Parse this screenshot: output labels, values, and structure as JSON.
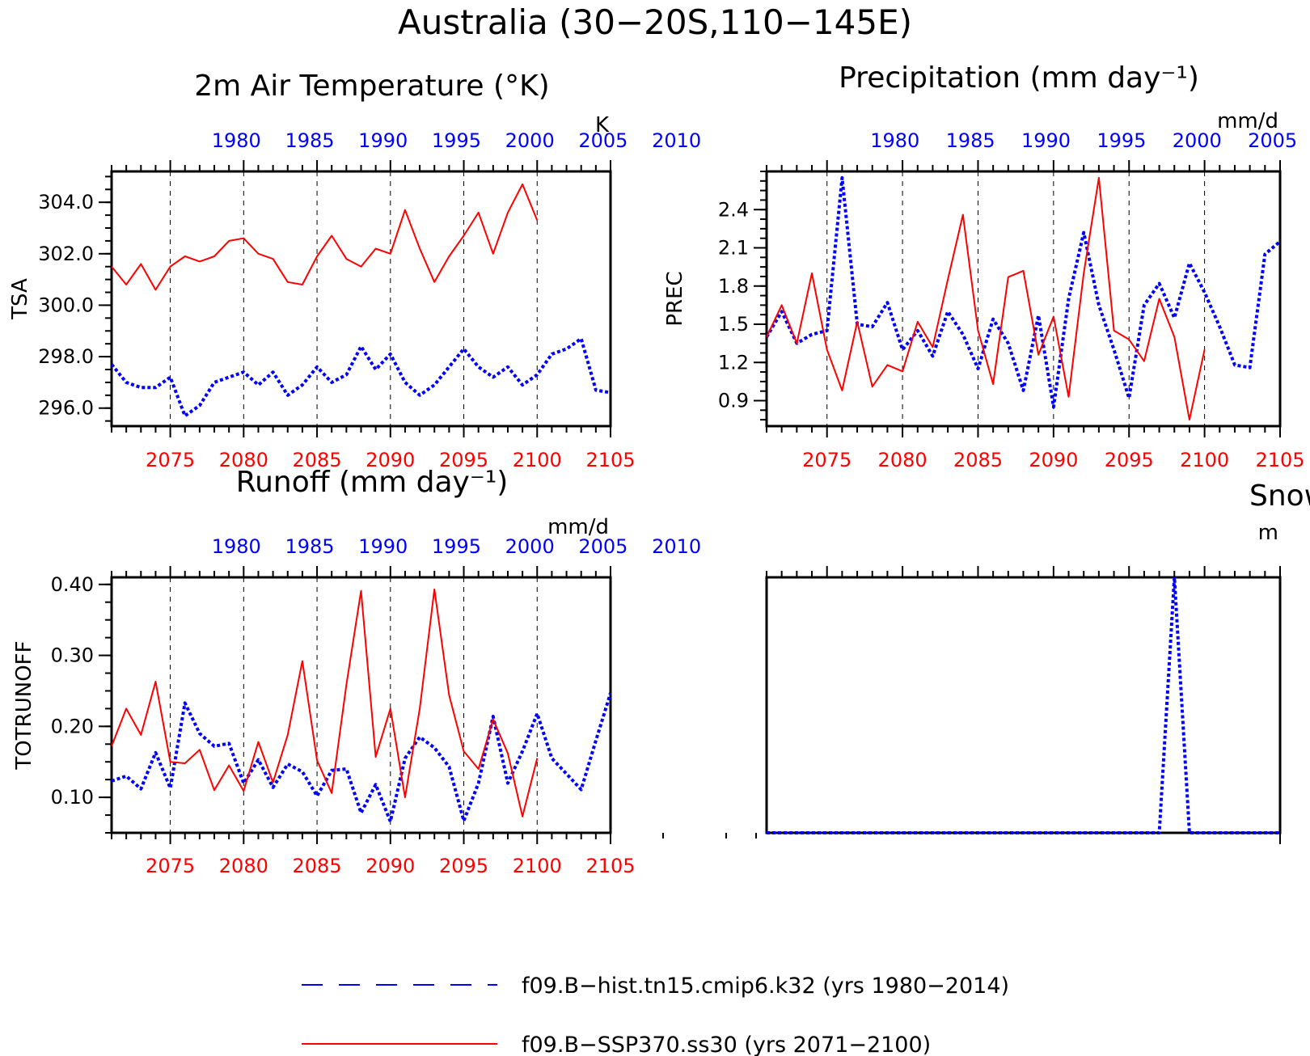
{
  "title": "Australia (30−20S,110−145E)",
  "colors": {
    "hist": "#0000ff",
    "ssp": "#ff0000",
    "axis": "#000000"
  },
  "legend": [
    {
      "label": "f09.B−hist.tn15.cmip6.k32 (yrs 1980−2014)",
      "color": "#0000ff",
      "style": "dashed"
    },
    {
      "label": "f09.B−SSP370.ss30 (yrs 2071−2100)",
      "color": "#ff0000",
      "style": "solid"
    }
  ],
  "chart_data": [
    {
      "id": "tsa",
      "type": "line",
      "title": "2m Air Temperature (°K)",
      "ylabel": "TSA",
      "units": "K",
      "ylim": [
        295.3,
        305.2
      ],
      "yticks": [
        "296.0",
        "298.0",
        "300.0",
        "302.0",
        "304.0"
      ],
      "ytick_values": [
        296,
        298,
        300,
        302,
        304
      ],
      "top_ticks": [
        "1980",
        "1985",
        "1990",
        "1995",
        "2000",
        "2005",
        "2010"
      ],
      "bottom_ticks": [
        "2075",
        "2080",
        "2085",
        "2090",
        "2095",
        "2100",
        "2105"
      ],
      "series": [
        {
          "name": "f09.B−hist.tn15.cmip6.k32",
          "color": "#0000ff",
          "style": "dotted",
          "values": [
            297.7,
            297.0,
            296.8,
            296.8,
            297.2,
            295.7,
            296.1,
            297.0,
            297.2,
            297.4,
            296.9,
            297.4,
            296.5,
            296.9,
            297.6,
            297.0,
            297.3,
            298.4,
            297.5,
            298.1,
            297.0,
            296.5,
            296.9,
            297.6,
            298.3,
            297.6,
            297.2,
            297.6,
            296.9,
            297.3,
            298.1,
            298.3,
            298.7,
            296.7,
            296.6
          ]
        },
        {
          "name": "f09.B−SSP370.ss30",
          "color": "#ff0000",
          "style": "solid",
          "values": [
            301.5,
            300.8,
            301.6,
            300.6,
            301.5,
            301.9,
            301.7,
            301.9,
            302.5,
            302.6,
            302.0,
            301.8,
            300.9,
            300.8,
            301.9,
            302.7,
            301.8,
            301.5,
            302.2,
            302.0,
            303.7,
            302.2,
            300.9,
            301.9,
            302.7,
            303.6,
            302.0,
            303.6,
            304.7,
            303.3
          ]
        }
      ]
    },
    {
      "id": "prec",
      "type": "line",
      "title": "Precipitation (mm day⁻¹)",
      "ylabel": "PREC",
      "units": "mm/d",
      "ylim": [
        0.7,
        2.7
      ],
      "yticks": [
        "0.9",
        "1.2",
        "1.5",
        "1.8",
        "2.1",
        "2.4"
      ],
      "ytick_values": [
        0.9,
        1.2,
        1.5,
        1.8,
        2.1,
        2.4
      ],
      "top_ticks": [
        "1980",
        "1985",
        "1990",
        "1995",
        "2000",
        "2005",
        "2010"
      ],
      "bottom_ticks": [
        "2075",
        "2080",
        "2085",
        "2090",
        "2095",
        "2100",
        "2105"
      ],
      "series": [
        {
          "name": "f09.B−hist.tn15.cmip6.k32",
          "color": "#0000ff",
          "style": "dotted",
          "values": [
            1.4,
            1.6,
            1.35,
            1.42,
            1.45,
            2.65,
            1.5,
            1.48,
            1.67,
            1.3,
            1.45,
            1.25,
            1.6,
            1.42,
            1.15,
            1.54,
            1.35,
            0.98,
            1.57,
            0.85,
            1.7,
            2.22,
            1.65,
            1.3,
            0.92,
            1.65,
            1.82,
            1.55,
            1.98,
            1.75,
            1.48,
            1.18,
            1.16,
            2.05,
            2.15
          ]
        },
        {
          "name": "f09.B−SSP370.ss30",
          "color": "#ff0000",
          "style": "solid",
          "values": [
            1.4,
            1.65,
            1.35,
            1.9,
            1.3,
            0.98,
            1.52,
            1.01,
            1.18,
            1.13,
            1.52,
            1.32,
            1.85,
            2.36,
            1.45,
            1.03,
            1.87,
            1.92,
            1.26,
            1.56,
            0.93,
            1.9,
            2.65,
            1.45,
            1.38,
            1.21,
            1.7,
            1.4,
            0.75,
            1.3
          ]
        }
      ]
    },
    {
      "id": "runoff",
      "type": "line",
      "title": "Runoff (mm day⁻¹)",
      "ylabel": "TOTRUNOFF",
      "units": "mm/d",
      "ylim": [
        0.05,
        0.41
      ],
      "yticks": [
        "0.10",
        "0.20",
        "0.30",
        "0.40"
      ],
      "ytick_values": [
        0.1,
        0.2,
        0.3,
        0.4
      ],
      "top_ticks": [
        "1980",
        "1985",
        "1990",
        "1995",
        "2000",
        "2005",
        "2010"
      ],
      "bottom_ticks": [
        "2075",
        "2080",
        "2085",
        "2090",
        "2095",
        "2100",
        "2105"
      ],
      "series": [
        {
          "name": "f09.B−hist.tn15.cmip6.k32",
          "color": "#0000ff",
          "style": "dotted",
          "values": [
            0.123,
            0.13,
            0.112,
            0.163,
            0.113,
            0.233,
            0.19,
            0.172,
            0.176,
            0.12,
            0.153,
            0.114,
            0.147,
            0.136,
            0.102,
            0.138,
            0.14,
            0.078,
            0.118,
            0.066,
            0.155,
            0.185,
            0.17,
            0.143,
            0.067,
            0.12,
            0.214,
            0.12,
            0.165,
            0.218,
            0.155,
            0.133,
            0.111,
            0.18,
            0.247
          ]
        },
        {
          "name": "f09.B−SSP370.ss30",
          "color": "#ff0000",
          "style": "solid",
          "values": [
            0.172,
            0.225,
            0.188,
            0.263,
            0.15,
            0.148,
            0.167,
            0.11,
            0.145,
            0.109,
            0.178,
            0.121,
            0.188,
            0.292,
            0.152,
            0.106,
            0.259,
            0.391,
            0.157,
            0.225,
            0.1,
            0.225,
            0.393,
            0.244,
            0.165,
            0.14,
            0.21,
            0.162,
            0.073,
            0.155
          ]
        }
      ]
    },
    {
      "id": "snow",
      "type": "line",
      "title": "Snow Dep",
      "units": "m",
      "ylim": [
        0,
        1
      ],
      "series": [
        {
          "name": "f09.B−hist.tn15.cmip6.k32",
          "color": "#0000ff",
          "style": "dotted",
          "values": [
            0,
            0,
            0,
            0,
            0,
            0,
            0,
            0,
            0,
            0,
            0,
            0,
            0,
            0,
            0,
            0,
            0,
            0,
            0,
            0,
            0,
            0,
            0,
            0,
            0,
            0,
            0,
            1,
            0,
            0,
            0,
            0,
            0,
            0,
            0
          ]
        }
      ]
    }
  ]
}
